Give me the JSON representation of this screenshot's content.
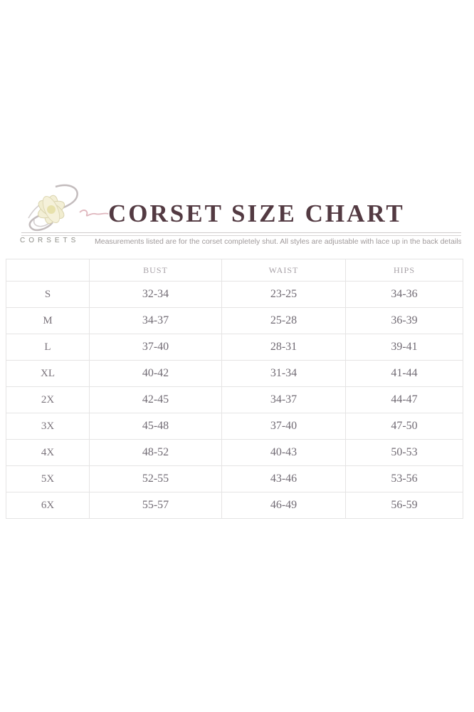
{
  "brand": {
    "logo_icon": "daisy-script-logo",
    "wordmark": "CORSETS",
    "flower_petal_color": "#f3efd6",
    "flower_outline_color": "#d9d3ae",
    "script_color": "#bcb5b6",
    "script_accent_color": "#d9a9b2"
  },
  "header": {
    "title": "CORSET SIZE CHART",
    "title_color": "#533a42",
    "subtitle": "Measurements listed are for the corset completely shut. All styles are adjustable with lace up in the back details."
  },
  "chart_data": {
    "type": "table",
    "title": "CORSET SIZE CHART",
    "columns": [
      "",
      "BUST",
      "WAIST",
      "HIPS"
    ],
    "rows": [
      [
        "S",
        "32-34",
        "23-25",
        "34-36"
      ],
      [
        "M",
        "34-37",
        "25-28",
        "36-39"
      ],
      [
        "L",
        "37-40",
        "28-31",
        "39-41"
      ],
      [
        "XL",
        "40-42",
        "31-34",
        "41-44"
      ],
      [
        "2X",
        "42-45",
        "34-37",
        "44-47"
      ],
      [
        "3X",
        "45-48",
        "37-40",
        "47-50"
      ],
      [
        "4X",
        "48-52",
        "40-43",
        "50-53"
      ],
      [
        "5X",
        "52-55",
        "43-46",
        "53-56"
      ],
      [
        "6X",
        "55-57",
        "46-49",
        "56-59"
      ]
    ],
    "layout_hints": {
      "grid": true,
      "gridline_color": "#e5e4e4",
      "text_color": "#716b74",
      "header_text_color": "#a7a1a7"
    }
  }
}
